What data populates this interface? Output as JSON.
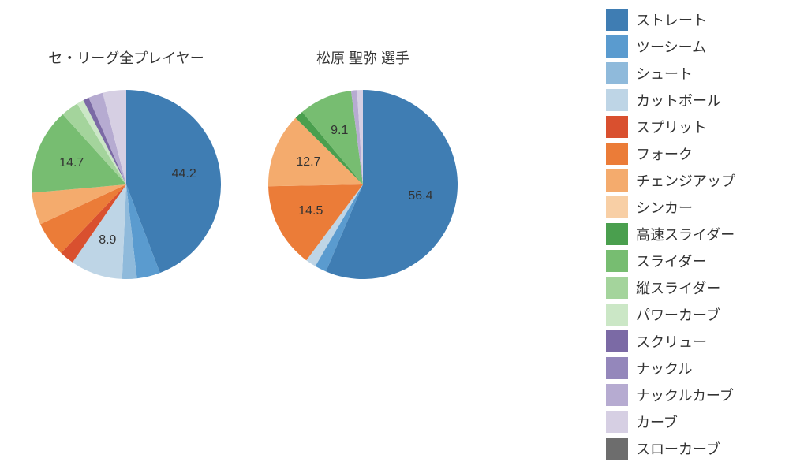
{
  "legend": {
    "items": [
      {
        "label": "ストレート",
        "color": "#3f7db3"
      },
      {
        "label": "ツーシーム",
        "color": "#5a9bcf"
      },
      {
        "label": "シュート",
        "color": "#8fbadb"
      },
      {
        "label": "カットボール",
        "color": "#bed5e6"
      },
      {
        "label": "スプリット",
        "color": "#d9502f"
      },
      {
        "label": "フォーク",
        "color": "#eb7c38"
      },
      {
        "label": "チェンジアップ",
        "color": "#f4ab6d"
      },
      {
        "label": "シンカー",
        "color": "#f8cfa5"
      },
      {
        "label": "高速スライダー",
        "color": "#4a9f4e"
      },
      {
        "label": "スライダー",
        "color": "#77bd71"
      },
      {
        "label": "縦スライダー",
        "color": "#a4d49c"
      },
      {
        "label": "パワーカーブ",
        "color": "#cbe7c6"
      },
      {
        "label": "スクリュー",
        "color": "#7b6aa5"
      },
      {
        "label": "ナックル",
        "color": "#9487bb"
      },
      {
        "label": "ナックルカーブ",
        "color": "#b6abd1"
      },
      {
        "label": "カーブ",
        "color": "#d6cfe3"
      },
      {
        "label": "スローカーブ",
        "color": "#6d6d6d"
      }
    ]
  },
  "charts": [
    {
      "title": "セ・リーグ全プレイヤー",
      "type": "pie",
      "background_color": "#ffffff",
      "slices": [
        {
          "name": "ストレート",
          "value": 44.2,
          "color": "#3f7db3",
          "show_label": true
        },
        {
          "name": "ツーシーム",
          "value": 4.0,
          "color": "#5a9bcf",
          "show_label": false
        },
        {
          "name": "シュート",
          "value": 2.5,
          "color": "#8fbadb",
          "show_label": false
        },
        {
          "name": "カットボール",
          "value": 8.9,
          "color": "#bed5e6",
          "show_label": true
        },
        {
          "name": "スプリット",
          "value": 2.5,
          "color": "#d9502f",
          "show_label": false
        },
        {
          "name": "フォーク",
          "value": 6.0,
          "color": "#eb7c38",
          "show_label": false
        },
        {
          "name": "チェンジアップ",
          "value": 5.5,
          "color": "#f4ab6d",
          "show_label": false
        },
        {
          "name": "スライダー",
          "value": 14.7,
          "color": "#77bd71",
          "show_label": true
        },
        {
          "name": "縦スライダー",
          "value": 3.0,
          "color": "#a4d49c",
          "show_label": false
        },
        {
          "name": "パワーカーブ",
          "value": 1.2,
          "color": "#cbe7c6",
          "show_label": false
        },
        {
          "name": "スクリュー",
          "value": 1.0,
          "color": "#7b6aa5",
          "show_label": false
        },
        {
          "name": "ナックルカーブ",
          "value": 2.5,
          "color": "#b6abd1",
          "show_label": false
        },
        {
          "name": "カーブ",
          "value": 4.0,
          "color": "#d6cfe3",
          "show_label": false
        }
      ],
      "title_fontsize": 18,
      "label_fontsize": 16
    },
    {
      "title": "松原 聖弥   選手",
      "type": "pie",
      "background_color": "#ffffff",
      "slices": [
        {
          "name": "ストレート",
          "value": 56.4,
          "color": "#3f7db3",
          "show_label": true
        },
        {
          "name": "ツーシーム",
          "value": 2.0,
          "color": "#5a9bcf",
          "show_label": false
        },
        {
          "name": "カットボール",
          "value": 1.8,
          "color": "#bed5e6",
          "show_label": false
        },
        {
          "name": "フォーク",
          "value": 14.5,
          "color": "#eb7c38",
          "show_label": true
        },
        {
          "name": "チェンジアップ",
          "value": 12.7,
          "color": "#f4ab6d",
          "show_label": true
        },
        {
          "name": "高速スライダー",
          "value": 1.5,
          "color": "#4a9f4e",
          "show_label": false
        },
        {
          "name": "スライダー",
          "value": 9.1,
          "color": "#77bd71",
          "show_label": true
        },
        {
          "name": "ナックルカーブ",
          "value": 1.0,
          "color": "#b6abd1",
          "show_label": false
        },
        {
          "name": "カーブ",
          "value": 1.0,
          "color": "#d6cfe3",
          "show_label": false
        }
      ],
      "title_fontsize": 18,
      "label_fontsize": 16
    }
  ]
}
